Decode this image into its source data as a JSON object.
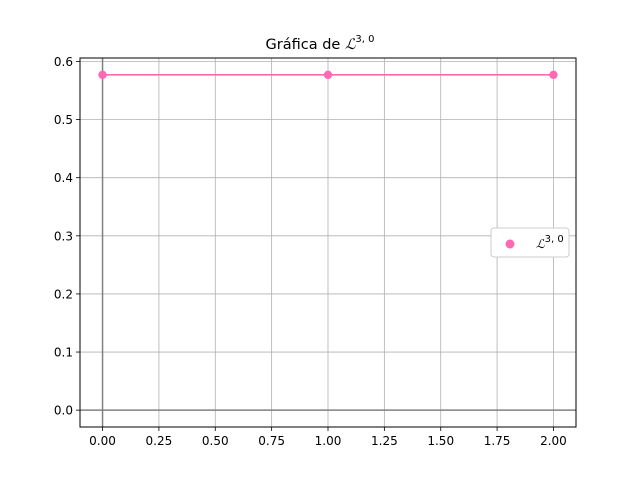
{
  "chart_data": {
    "type": "line",
    "title": {
      "prefix": "Gráfica de ",
      "symbol": "ℒ",
      "superscript": "3, 0"
    },
    "xlabel": "",
    "ylabel": "",
    "xlim": [
      -0.1,
      2.1
    ],
    "ylim": [
      -0.029,
      0.606
    ],
    "xticks": [
      0.0,
      0.25,
      0.5,
      0.75,
      1.0,
      1.25,
      1.5,
      1.75,
      2.0
    ],
    "xtick_labels": [
      "0.00",
      "0.25",
      "0.50",
      "0.75",
      "1.00",
      "1.25",
      "1.50",
      "1.75",
      "2.00"
    ],
    "yticks": [
      0.0,
      0.1,
      0.2,
      0.3,
      0.4,
      0.5,
      0.6
    ],
    "ytick_labels": [
      "0.0",
      "0.1",
      "0.2",
      "0.3",
      "0.4",
      "0.5",
      "0.6"
    ],
    "grid": true,
    "zero_lines": true,
    "legend_position": "center-right",
    "series": [
      {
        "name": "ℒ",
        "name_superscript": "3, 0",
        "color": "#ff69b4",
        "x": [
          0,
          1,
          2
        ],
        "y": [
          0.577,
          0.577,
          0.577
        ]
      }
    ]
  }
}
